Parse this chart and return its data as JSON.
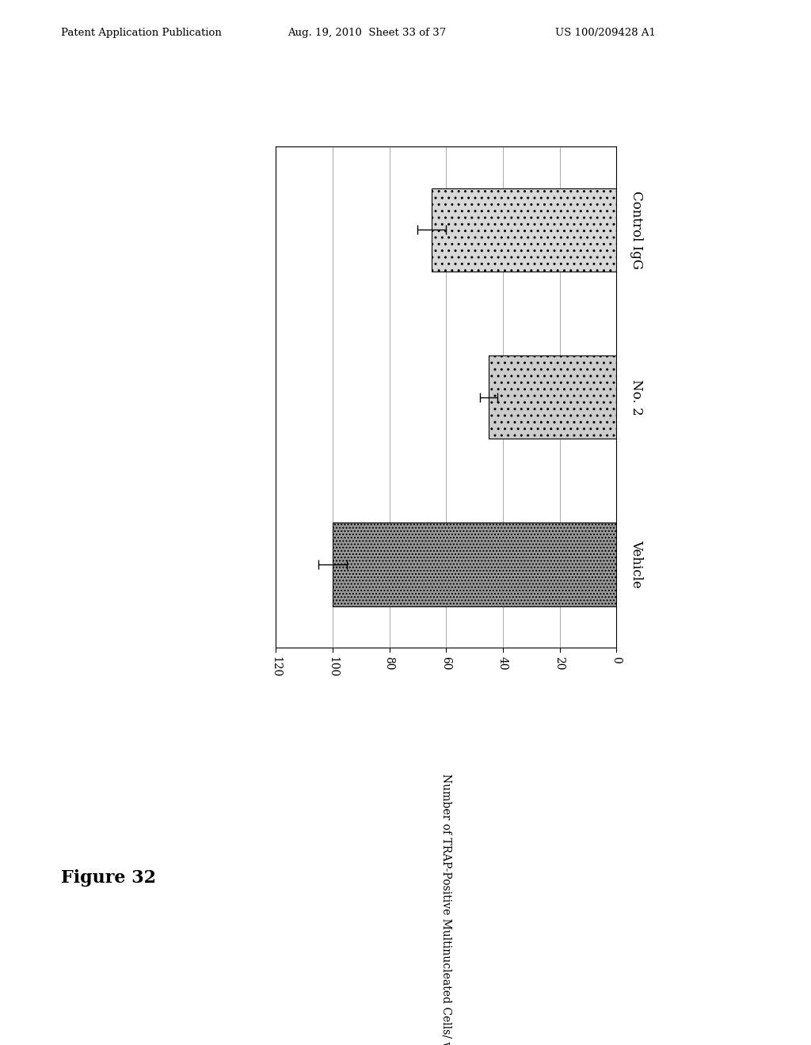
{
  "categories": [
    "Vehicle",
    "No. 2",
    "Control IgG"
  ],
  "values": [
    100,
    45,
    65
  ],
  "errors": [
    5,
    3,
    5
  ],
  "bar_color_vehicle": "#999999",
  "bar_color_no2": "#cccccc",
  "bar_color_igg": "#d8d8d8",
  "xlabel": "Number of TRAP-Positive Multinucleated Cells/ well",
  "xlim": [
    0,
    120
  ],
  "xticks": [
    0,
    20,
    40,
    60,
    80,
    100,
    120
  ],
  "background_color": "#ffffff",
  "bar_edge_color": "#000000",
  "grid_color": "#888888",
  "header_left": "Patent Application Publication",
  "header_mid": "Aug. 19, 2010  Sheet 33 of 37",
  "header_right": "US 100/209428 A1",
  "figure_label": "Figure 32"
}
